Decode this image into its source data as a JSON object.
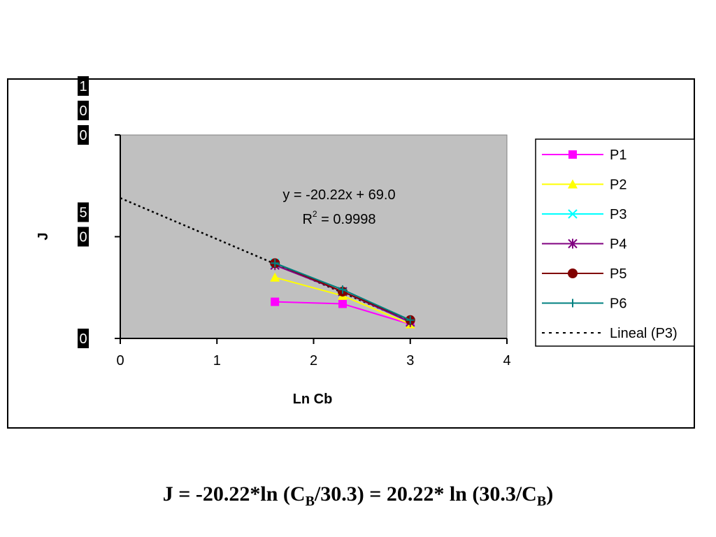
{
  "chart_data": {
    "type": "scatter",
    "xlabel": "Ln Cb",
    "ylabel": "J",
    "xlim": [
      0,
      4
    ],
    "ylim": [
      0,
      100
    ],
    "xticks": [
      0,
      1,
      2,
      3,
      4
    ],
    "xtick_labels": [
      "0",
      "1",
      "2",
      "3",
      "4"
    ],
    "yticks": [
      0,
      50,
      100
    ],
    "ytick_labels": [
      "0",
      "50",
      "100"
    ],
    "grid": false,
    "plot_background": "#c0c0c0",
    "legend_position": "right",
    "series": [
      {
        "name": "P1",
        "color": "#ff00ff",
        "marker": "square",
        "x": [
          1.6,
          2.3,
          3.0
        ],
        "y": [
          18,
          17,
          7
        ]
      },
      {
        "name": "P2",
        "color": "#ffff00",
        "marker": "triangle",
        "x": [
          1.6,
          2.3,
          3.0
        ],
        "y": [
          30,
          21,
          7
        ]
      },
      {
        "name": "P3",
        "color": "#00ffff",
        "marker": "x",
        "x": [
          1.6,
          2.3,
          3.0
        ],
        "y": [
          37,
          23,
          8
        ]
      },
      {
        "name": "P4",
        "color": "#800080",
        "marker": "star",
        "x": [
          1.6,
          2.3,
          3.0
        ],
        "y": [
          36,
          23,
          8
        ]
      },
      {
        "name": "P5",
        "color": "#800000",
        "marker": "circle",
        "x": [
          1.6,
          2.3,
          3.0
        ],
        "y": [
          37,
          23,
          9
        ]
      },
      {
        "name": "P6",
        "color": "#008080",
        "marker": "plus",
        "x": [
          1.6,
          2.3,
          3.0
        ],
        "y": [
          37,
          24,
          9
        ]
      }
    ],
    "trendline": {
      "name": "Lineal (P3)",
      "of_series": "P3",
      "slope": -20.22,
      "intercept": 69.0,
      "x_range": [
        0,
        3.0
      ],
      "color": "#000000",
      "style": "dotted"
    },
    "annotations": {
      "equation": "y = -20.22x + 69.0",
      "r2_prefix": "R",
      "r2_exponent": "2",
      "r2_value": " = 0.9998"
    }
  },
  "formula": {
    "p1": "J = -20.22*ln (C",
    "sub1": "B",
    "p2": "/30.3) = 20.22* ln (30.3/C",
    "sub2": "B",
    "p3": ")"
  }
}
